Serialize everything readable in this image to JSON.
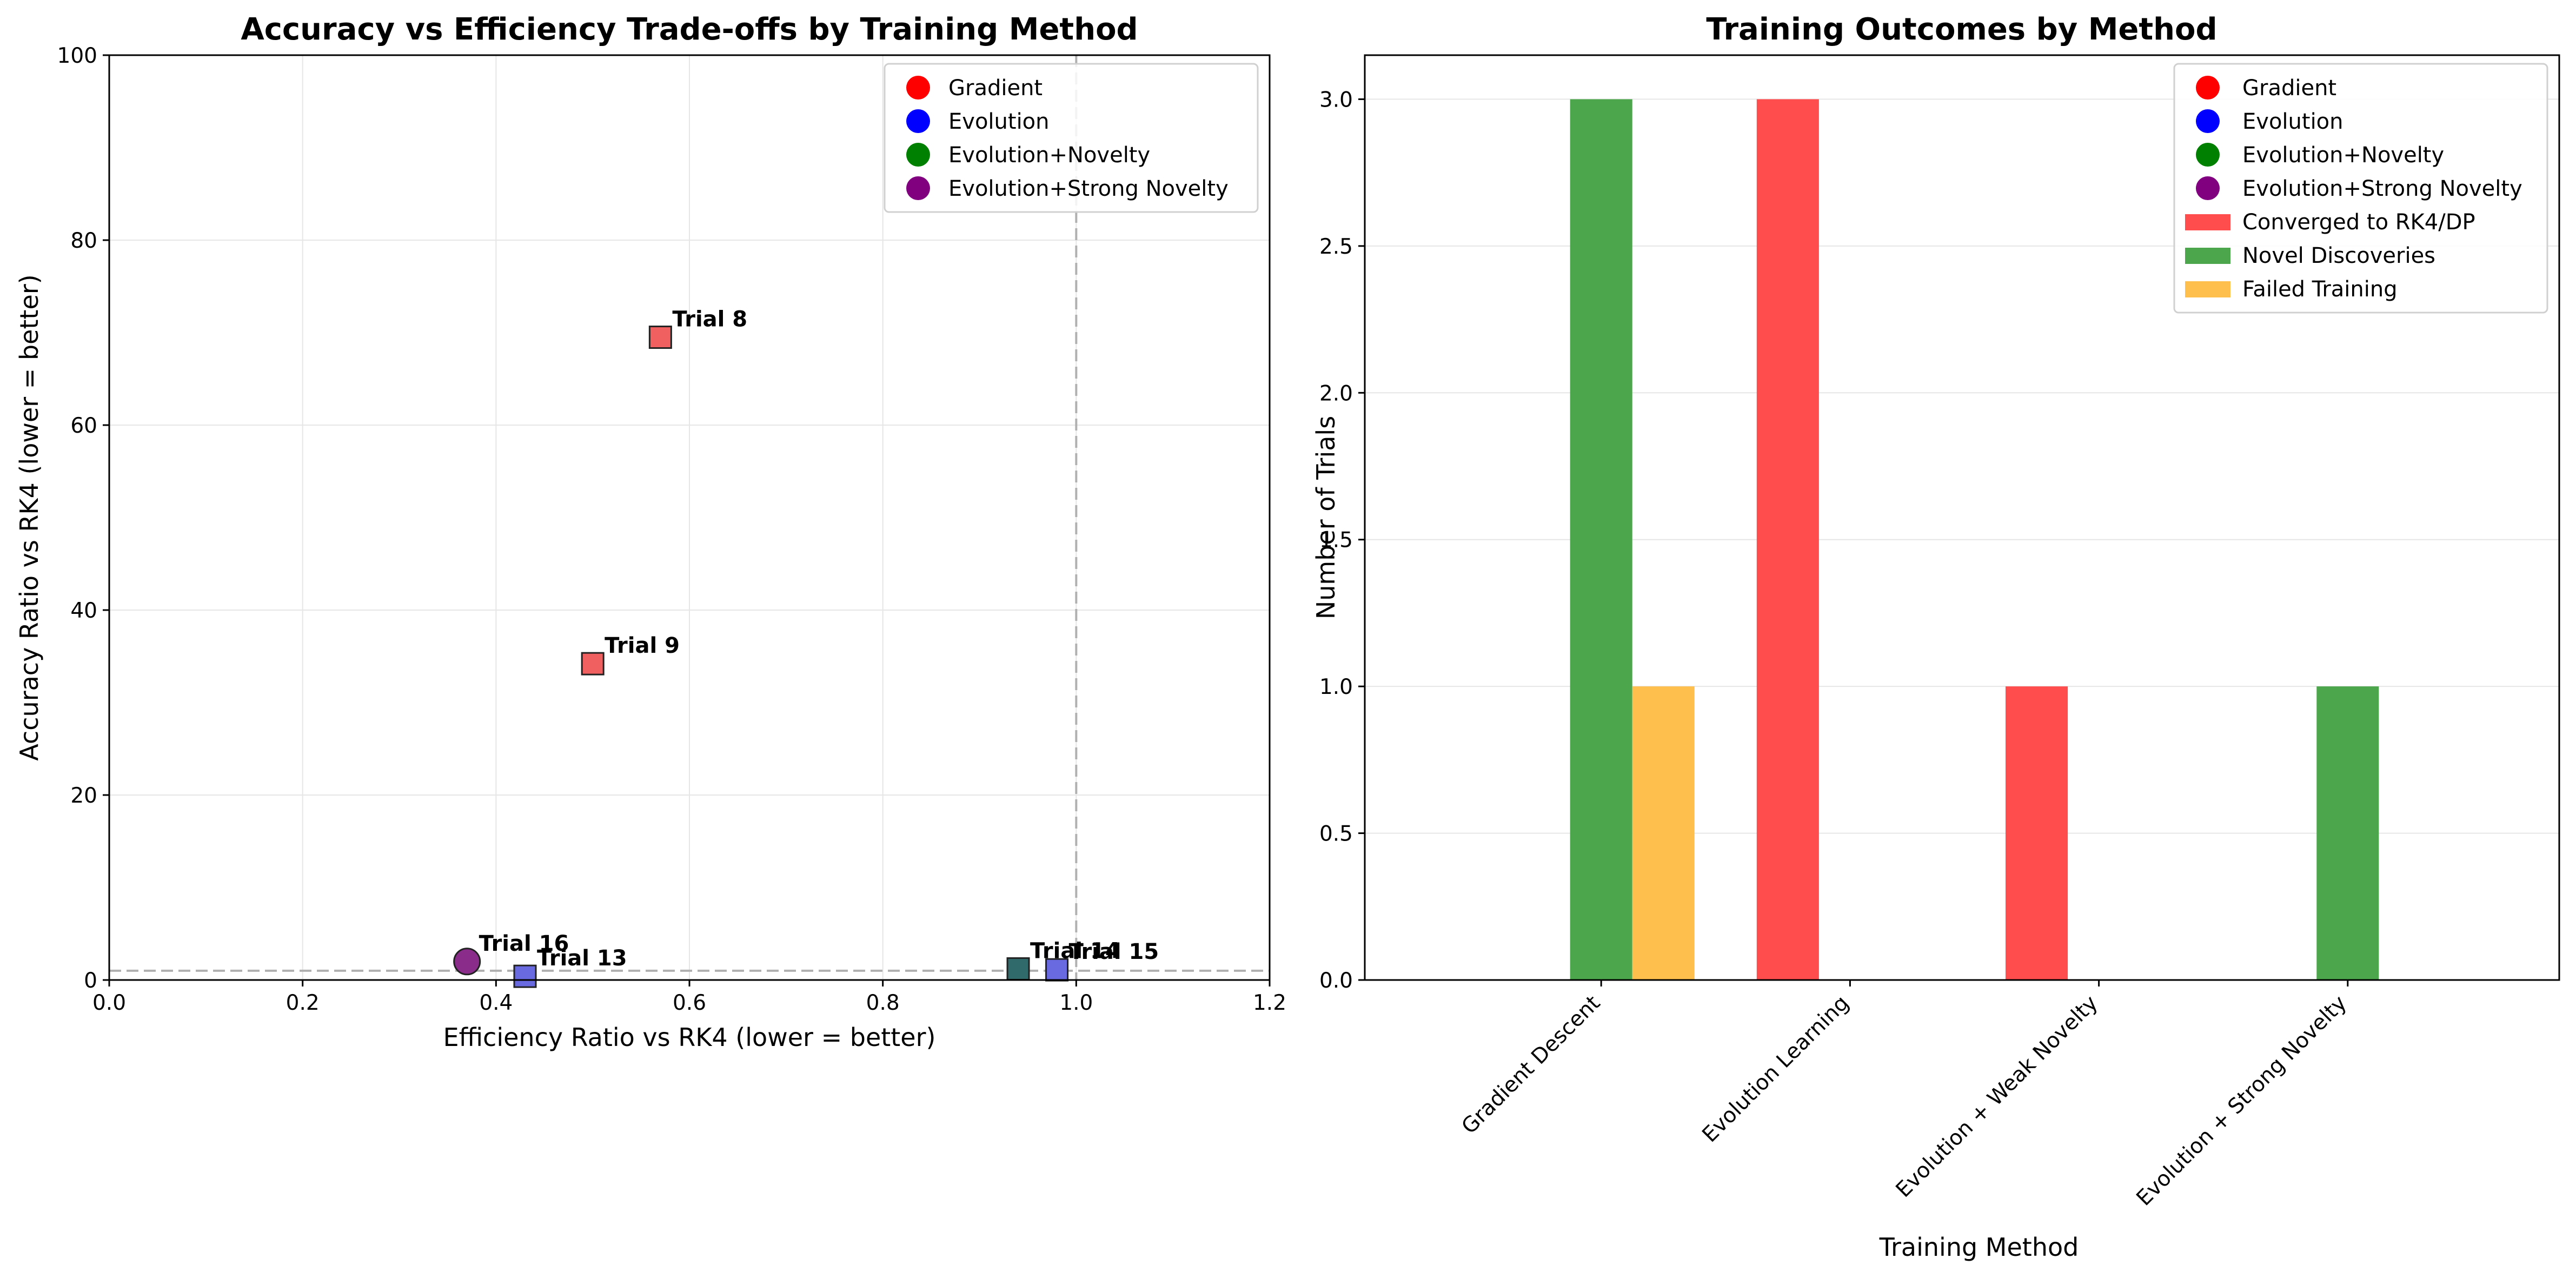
{
  "chart_data": [
    {
      "type": "scatter",
      "title": "Accuracy vs Efficiency Trade-offs by Training Method",
      "xlabel": "Efficiency Ratio vs RK4 (lower = better)",
      "ylabel": "Accuracy Ratio vs RK4 (lower = better)",
      "xlim": [
        0.0,
        1.2
      ],
      "ylim": [
        0,
        100
      ],
      "xticks": [
        0.0,
        0.2,
        0.4,
        0.6,
        0.8,
        1.0,
        1.2
      ],
      "xtick_labels": [
        "0.0",
        "0.2",
        "0.4",
        "0.6",
        "0.8",
        "1.0",
        "1.2"
      ],
      "yticks": [
        0,
        20,
        40,
        60,
        80,
        100
      ],
      "ytick_labels": [
        "0",
        "20",
        "40",
        "60",
        "80",
        "100"
      ],
      "grid": true,
      "reference_lines": [
        {
          "axis": "x",
          "value": 1.0,
          "style": "dashed",
          "color": "#b0b0b0"
        },
        {
          "axis": "y",
          "value": 1.0,
          "style": "dashed",
          "color": "#b0b0b0"
        }
      ],
      "legend_position": "top-right",
      "legend": [
        {
          "label": "Gradient",
          "color": "#ff0000"
        },
        {
          "label": "Evolution",
          "color": "#0000ff"
        },
        {
          "label": "Evolution+Novelty",
          "color": "#008000"
        },
        {
          "label": "Evolution+Strong Novelty",
          "color": "#800080"
        }
      ],
      "points": [
        {
          "label": "Trial 8",
          "x": 0.57,
          "y": 69.5,
          "method": "Gradient",
          "marker": "square",
          "color": "#f06060"
        },
        {
          "label": "Trial 9",
          "x": 0.5,
          "y": 34.2,
          "method": "Gradient",
          "marker": "square",
          "color": "#f06060"
        },
        {
          "label": "Trial 16",
          "x": 0.37,
          "y": 2.0,
          "method": "Evolution+Strong Novelty",
          "marker": "circle",
          "color": "#8a2d8a"
        },
        {
          "label": "Trial 13",
          "x": 0.43,
          "y": 0.4,
          "method": "Evolution",
          "marker": "square",
          "color": "#6a6ae0"
        },
        {
          "label": "Trial 14",
          "x": 0.94,
          "y": 1.2,
          "method": "Evolution+Novelty",
          "marker": "square",
          "color": "#306a6a"
        },
        {
          "label": "Trial 15",
          "x": 0.98,
          "y": 1.1,
          "method": "Evolution",
          "marker": "square",
          "color": "#6a6ae0"
        }
      ]
    },
    {
      "type": "bar",
      "title": "Training Outcomes by Method",
      "xlabel": "Training Method",
      "ylabel": "Number of Trials",
      "categories": [
        "Gradient Descent",
        "Evolution Learning",
        "Evolution + Weak Novelty",
        "Evolution + Strong Novelty"
      ],
      "ylim": [
        0,
        3.15
      ],
      "yticks": [
        0.0,
        0.5,
        1.0,
        1.5,
        2.0,
        2.5,
        3.0
      ],
      "ytick_labels": [
        "0.0",
        "0.5",
        "1.0",
        "1.5",
        "2.0",
        "2.5",
        "3.0"
      ],
      "grid": true,
      "legend_position": "top-right",
      "legend": [
        {
          "label": "Gradient",
          "color": "#ff0000",
          "kind": "marker"
        },
        {
          "label": "Evolution",
          "color": "#0000ff",
          "kind": "marker"
        },
        {
          "label": "Evolution+Novelty",
          "color": "#008000",
          "kind": "marker"
        },
        {
          "label": "Evolution+Strong Novelty",
          "color": "#800080",
          "kind": "marker"
        },
        {
          "label": "Converged to RK4/DP",
          "color": "#ff4c4c",
          "kind": "patch"
        },
        {
          "label": "Novel Discoveries",
          "color": "#4ca64c",
          "kind": "patch"
        },
        {
          "label": "Failed Training",
          "color": "#ffbf4c",
          "kind": "patch"
        }
      ],
      "series": [
        {
          "name": "Converged to RK4/DP",
          "color": "#ff4c4c",
          "values": [
            0,
            3,
            1,
            0
          ]
        },
        {
          "name": "Novel Discoveries",
          "color": "#4ca64c",
          "values": [
            3,
            0,
            0,
            1
          ]
        },
        {
          "name": "Failed Training",
          "color": "#ffbf4c",
          "values": [
            1,
            0,
            0,
            0
          ]
        }
      ]
    }
  ]
}
